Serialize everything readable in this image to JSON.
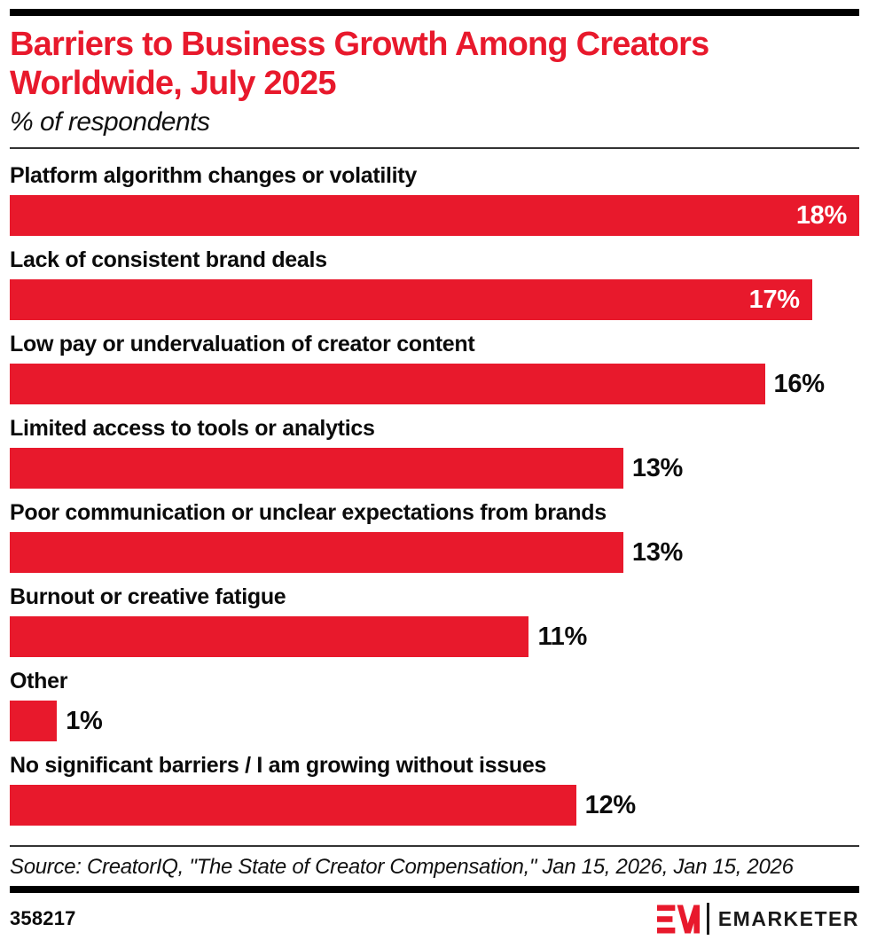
{
  "header": {
    "title_line1": "Barriers to Business Growth Among Creators",
    "title_line2": "Worldwide, July 2025",
    "subtitle": "% of respondents"
  },
  "chart_data": {
    "type": "bar",
    "orientation": "horizontal",
    "unit": "% of respondents",
    "categories": [
      "Platform algorithm changes or volatility",
      "Lack of consistent brand deals",
      "Low pay or undervaluation of creator content",
      "Limited access to tools or analytics",
      "Poor communication or unclear expectations from brands",
      "Burnout or creative fatigue",
      "Other",
      "No significant barriers / I am growing without issues"
    ],
    "values": [
      18,
      17,
      16,
      13,
      13,
      11,
      1,
      12
    ],
    "value_labels": [
      "18%",
      "17%",
      "16%",
      "13%",
      "13%",
      "11%",
      "1%",
      "12%"
    ],
    "value_label_inside": [
      true,
      true,
      false,
      false,
      false,
      false,
      false,
      false
    ],
    "xlim": [
      0,
      18
    ],
    "grid": false,
    "legend": "none",
    "bar_color": "#E8192C"
  },
  "footer": {
    "source": "Source: CreatorIQ, \"The State of Creator Compensation,\" Jan 15, 2026, Jan 15, 2026",
    "chart_id": "358217",
    "brand_name": "EMARKETER"
  },
  "colors": {
    "accent_red": "#E8192C",
    "rule_black": "#000000",
    "text_black": "#111111",
    "inside_label_white": "#FFFFFF"
  }
}
